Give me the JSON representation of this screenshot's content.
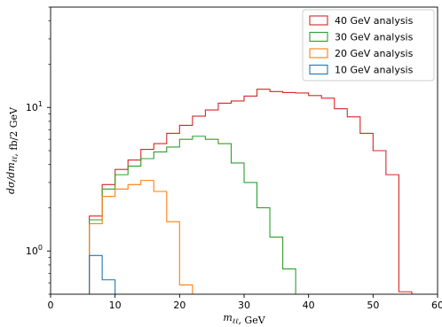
{
  "chart_data": {
    "type": "step-histogram",
    "xlabel": "m_{ℓℓ}, GeV",
    "ylabel": "dσ/dm_{ℓℓ}, fb/2 GeV",
    "xlim": [
      0,
      60
    ],
    "ylim": [
      0.5,
      50
    ],
    "yscale": "log",
    "x_ticks": [
      0,
      10,
      20,
      30,
      40,
      50,
      60
    ],
    "x_tick_labels": [
      "0",
      "10",
      "20",
      "30",
      "40",
      "50",
      "60"
    ],
    "y_ticks": [
      1,
      10
    ],
    "y_tick_labels": [
      "10^0",
      "10^1"
    ],
    "legend_position": "upper right",
    "series": [
      {
        "name": "40 GeV analysis",
        "color": "#d62728",
        "edges": [
          6,
          8,
          10,
          12,
          14,
          16,
          18,
          20,
          22,
          24,
          26,
          28,
          30,
          32,
          34,
          36,
          38,
          40,
          42,
          44,
          46,
          48,
          50,
          52,
          54,
          56
        ],
        "values": [
          1.75,
          2.9,
          3.7,
          4.3,
          5.1,
          5.6,
          6.6,
          7.5,
          8.7,
          9.6,
          10.7,
          11.1,
          12.0,
          13.4,
          12.9,
          12.7,
          12.6,
          12.1,
          11.6,
          9.8,
          8.6,
          6.6,
          5.0,
          3.4,
          0.52
        ]
      },
      {
        "name": "30 GeV analysis",
        "color": "#2ca02c",
        "edges": [
          6,
          8,
          10,
          12,
          14,
          16,
          18,
          20,
          22,
          24,
          26,
          28,
          30,
          32,
          34,
          36,
          38
        ],
        "values": [
          1.65,
          2.7,
          3.4,
          3.9,
          4.4,
          4.9,
          5.3,
          6.0,
          6.3,
          6.0,
          5.6,
          4.1,
          3.0,
          2.0,
          1.25,
          0.75
        ]
      },
      {
        "name": "20 GeV analysis",
        "color": "#ff7f0e",
        "edges": [
          6,
          8,
          10,
          12,
          14,
          16,
          18,
          20,
          22
        ],
        "values": [
          1.55,
          2.4,
          2.7,
          2.9,
          3.1,
          2.6,
          1.6,
          0.58
        ]
      },
      {
        "name": "10 GeV analysis",
        "color": "#1f77b4",
        "edges": [
          6,
          8,
          10
        ],
        "values": [
          0.93,
          0.63
        ]
      }
    ]
  }
}
